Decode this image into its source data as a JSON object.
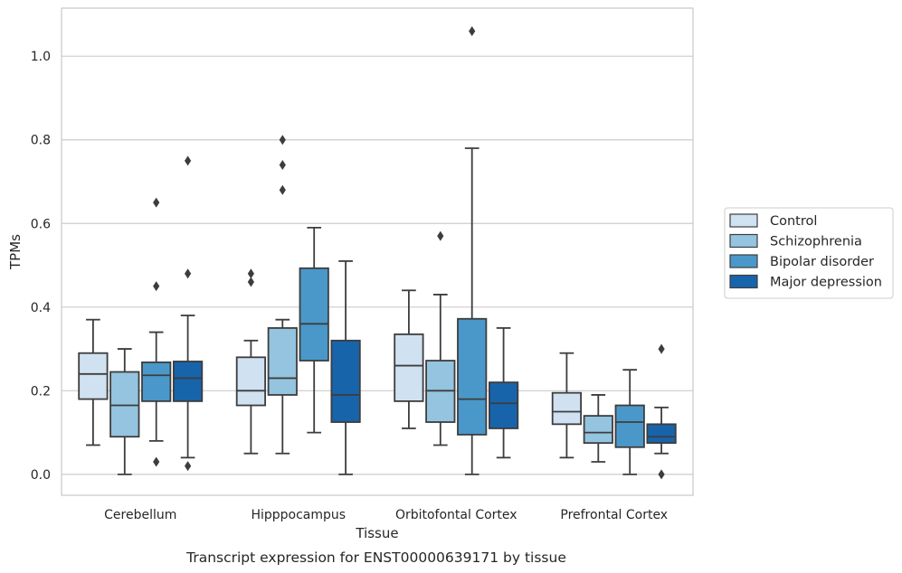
{
  "chart_data": {
    "type": "box",
    "title": "",
    "caption": "Transcript expression for ENST00000639171 by tissue",
    "xlabel": "Tissue",
    "ylabel": "TPMs",
    "ylim": [
      -0.05,
      1.115
    ],
    "yticks": [
      0.0,
      0.2,
      0.4,
      0.6,
      0.8,
      1.0
    ],
    "ytick_labels": [
      "0.0",
      "0.2",
      "0.4",
      "0.6",
      "0.8",
      "1.0"
    ],
    "grid": "horizontal",
    "legend_position": "right",
    "categories": [
      "Cerebellum",
      "Hipppocampus",
      "Orbitofontal Cortex",
      "Prefrontal Cortex"
    ],
    "series": [
      {
        "name": "Control",
        "color": "#d0e1f2",
        "boxes": [
          {
            "whisker_low": 0.07,
            "q1": 0.18,
            "median": 0.24,
            "q3": 0.29,
            "whisker_high": 0.37,
            "outliers": []
          },
          {
            "whisker_low": 0.05,
            "q1": 0.165,
            "median": 0.2,
            "q3": 0.28,
            "whisker_high": 0.32,
            "outliers": [
              0.46,
              0.48
            ]
          },
          {
            "whisker_low": 0.11,
            "q1": 0.175,
            "median": 0.26,
            "q3": 0.335,
            "whisker_high": 0.44,
            "outliers": []
          },
          {
            "whisker_low": 0.04,
            "q1": 0.12,
            "median": 0.15,
            "q3": 0.195,
            "whisker_high": 0.29,
            "outliers": []
          }
        ]
      },
      {
        "name": "Schizophrenia",
        "color": "#94c4df",
        "boxes": [
          {
            "whisker_low": 0.0,
            "q1": 0.09,
            "median": 0.165,
            "q3": 0.245,
            "whisker_high": 0.3,
            "outliers": []
          },
          {
            "whisker_low": 0.05,
            "q1": 0.19,
            "median": 0.23,
            "q3": 0.35,
            "whisker_high": 0.37,
            "outliers": [
              0.68,
              0.74,
              0.8
            ]
          },
          {
            "whisker_low": 0.07,
            "q1": 0.125,
            "median": 0.2,
            "q3": 0.272,
            "whisker_high": 0.43,
            "outliers": [
              0.57
            ]
          },
          {
            "whisker_low": 0.03,
            "q1": 0.075,
            "median": 0.1,
            "q3": 0.14,
            "whisker_high": 0.19,
            "outliers": []
          }
        ]
      },
      {
        "name": "Bipolar disorder",
        "color": "#4a98c9",
        "boxes": [
          {
            "whisker_low": 0.08,
            "q1": 0.175,
            "median": 0.237,
            "q3": 0.268,
            "whisker_high": 0.34,
            "outliers": [
              0.03,
              0.45,
              0.65
            ]
          },
          {
            "whisker_low": 0.1,
            "q1": 0.272,
            "median": 0.36,
            "q3": 0.493,
            "whisker_high": 0.59,
            "outliers": []
          },
          {
            "whisker_low": 0.0,
            "q1": 0.095,
            "median": 0.18,
            "q3": 0.372,
            "whisker_high": 0.78,
            "outliers": [
              1.06
            ]
          },
          {
            "whisker_low": 0.0,
            "q1": 0.065,
            "median": 0.125,
            "q3": 0.165,
            "whisker_high": 0.25,
            "outliers": []
          }
        ]
      },
      {
        "name": "Major depression",
        "color": "#1764ab",
        "boxes": [
          {
            "whisker_low": 0.04,
            "q1": 0.175,
            "median": 0.23,
            "q3": 0.27,
            "whisker_high": 0.38,
            "outliers": [
              0.02,
              0.48,
              0.75
            ]
          },
          {
            "whisker_low": 0.0,
            "q1": 0.125,
            "median": 0.19,
            "q3": 0.32,
            "whisker_high": 0.51,
            "outliers": []
          },
          {
            "whisker_low": 0.04,
            "q1": 0.11,
            "median": 0.17,
            "q3": 0.22,
            "whisker_high": 0.35,
            "outliers": []
          },
          {
            "whisker_low": 0.05,
            "q1": 0.075,
            "median": 0.09,
            "q3": 0.12,
            "whisker_high": 0.16,
            "outliers": [
              0.0,
              0.3
            ]
          }
        ]
      }
    ]
  }
}
